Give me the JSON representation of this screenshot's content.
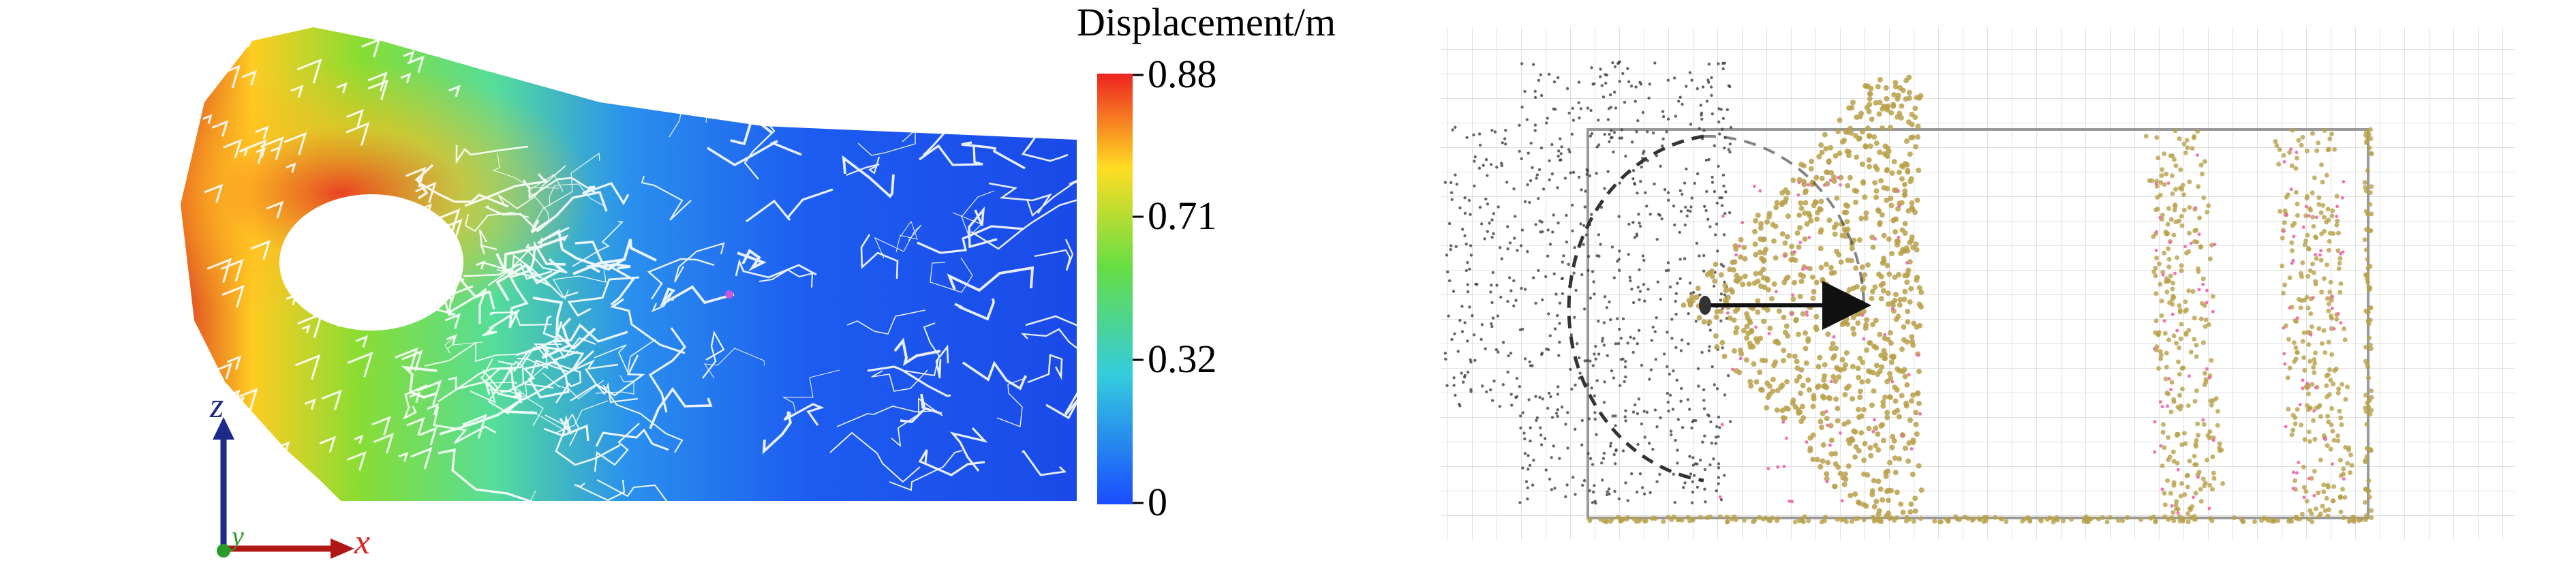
{
  "left_panel": {
    "colorbar": {
      "title": "Displacement/m",
      "ticks": [
        "0.88",
        "0.71",
        "0.32",
        "0"
      ]
    },
    "axes": {
      "z_label": "z",
      "y_label": "y",
      "x_label": "x"
    }
  },
  "right_panel": {
    "description_shown": false
  },
  "colors": {
    "colorbar_stops": [
      "#1a4cff",
      "#33ccdd",
      "#66dd44",
      "#ffdd22",
      "#ee2222"
    ],
    "z_axis": "#1e2a8a",
    "x_axis": "#b01818",
    "label_red": "#dd2222",
    "label_blue": "#1e2a8a",
    "particle_tan": "#b8a04a",
    "particle_dark": "#404040",
    "particle_pink": "#ee66aa"
  }
}
